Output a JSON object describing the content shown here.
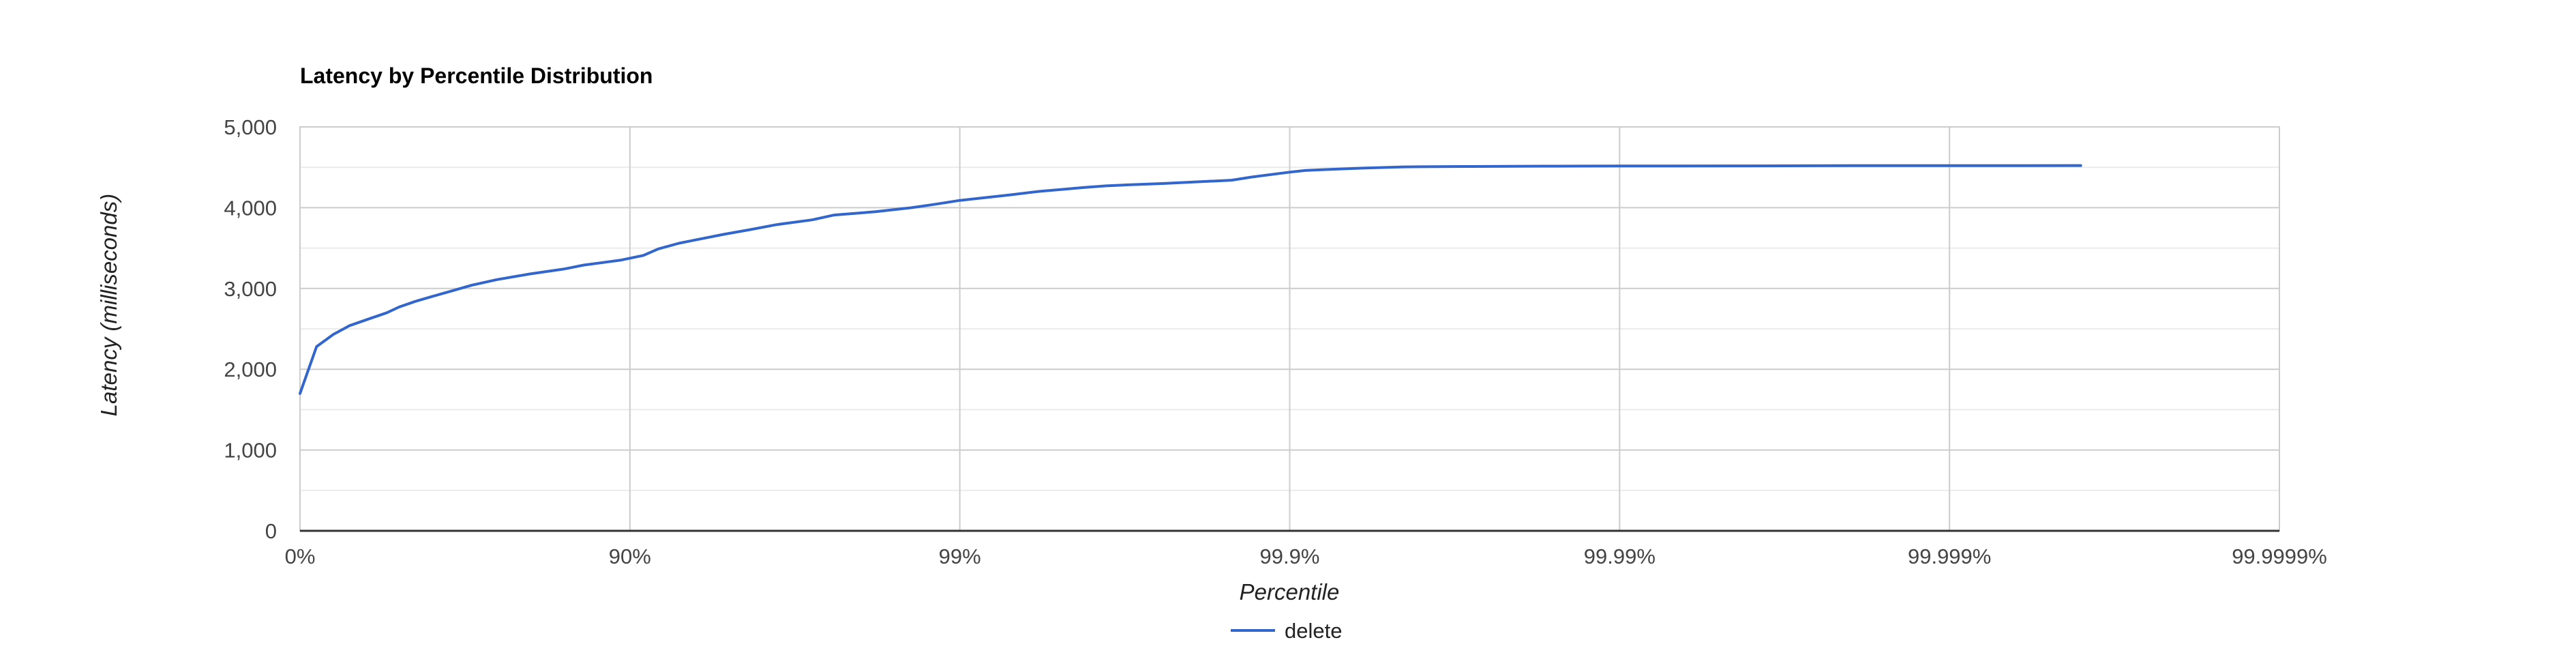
{
  "chart_data": {
    "type": "line",
    "title": "Latency by Percentile Distribution",
    "xlabel": "Percentile",
    "ylabel": "Latency (milliseconds)",
    "x_scale": "percentile-nines-log",
    "x_ticks": [
      {
        "value": 0,
        "label": "0%"
      },
      {
        "value": 90,
        "label": "90%"
      },
      {
        "value": 99,
        "label": "99%"
      },
      {
        "value": 99.9,
        "label": "99.9%"
      },
      {
        "value": 99.99,
        "label": "99.99%"
      },
      {
        "value": 99.999,
        "label": "99.999%"
      },
      {
        "value": 99.9999,
        "label": "99.9999%"
      }
    ],
    "y_ticks": [
      {
        "value": 0,
        "label": "0"
      },
      {
        "value": 1000,
        "label": "1,000"
      },
      {
        "value": 2000,
        "label": "2,000"
      },
      {
        "value": 3000,
        "label": "3,000"
      },
      {
        "value": 4000,
        "label": "4,000"
      },
      {
        "value": 5000,
        "label": "5,000"
      }
    ],
    "ylim": [
      0,
      5000
    ],
    "grid": true,
    "legend_position": "bottom",
    "series": [
      {
        "name": "delete",
        "color": "#3366cc",
        "x": [
          0,
          10.9,
          20.7,
          29.2,
          37.8,
          45.5,
          49.9,
          55.3,
          60.2,
          65.3,
          69.8,
          74.7,
          79.9,
          84.1,
          86.2,
          89.3,
          90.9,
          91.8,
          92.9,
          94.0,
          94.8,
          95.7,
          96.4,
          97.2,
          97.6,
          98.2,
          98.6,
          98.8,
          99.0,
          99.14,
          99.3,
          99.42,
          99.52,
          99.58,
          99.64,
          99.68,
          99.72,
          99.76,
          99.85,
          99.87,
          99.9,
          99.91,
          99.92,
          99.93,
          99.94,
          99.95,
          99.955,
          99.96,
          99.97,
          99.978,
          99.983,
          99.987,
          99.99,
          99.993,
          99.996,
          99.998,
          99.999,
          99.9994,
          99.9996
        ],
        "y": [
          1700,
          2280,
          2430,
          2540,
          2620,
          2700,
          2770,
          2840,
          2900,
          2970,
          3040,
          3110,
          3180,
          3240,
          3290,
          3350,
          3410,
          3490,
          3560,
          3620,
          3670,
          3730,
          3790,
          3850,
          3910,
          3950,
          4000,
          4040,
          4090,
          4120,
          4160,
          4200,
          4230,
          4250,
          4270,
          4280,
          4290,
          4300,
          4340,
          4380,
          4440,
          4460,
          4470,
          4480,
          4490,
          4500,
          4505,
          4507,
          4510,
          4512,
          4514,
          4515,
          4516,
          4517,
          4518,
          4520,
          4520,
          4521,
          4522
        ]
      }
    ]
  }
}
